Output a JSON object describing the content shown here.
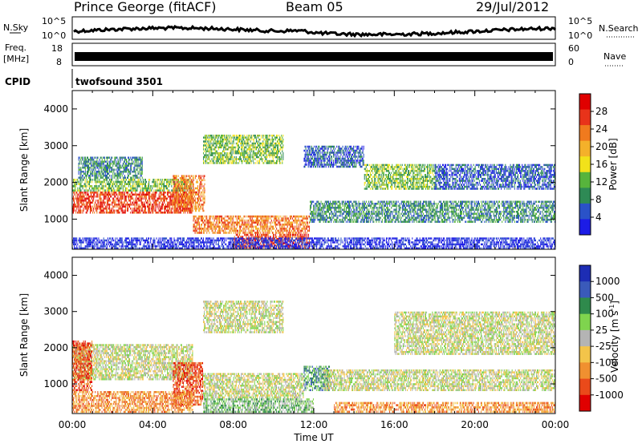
{
  "header": {
    "station": "Prince George (fitACF)",
    "beam": "Beam 05",
    "date": "29/Jul/2012"
  },
  "strips": {
    "nsky_label": "N.Sky",
    "nsky_ticks": [
      "10^5",
      "10^0"
    ],
    "nsearch_label": "N.Search",
    "nsearch_ticks": [
      "10^5",
      "10^0"
    ],
    "freq_label_1": "Freq.",
    "freq_label_2": "[MHz]",
    "freq_ticks": [
      "18",
      "8"
    ],
    "nave_label": "Nave",
    "nave_ticks": [
      "60",
      "0"
    ],
    "cpid_label": "CPID",
    "cpid_value": "twofsound 3501"
  },
  "colors": {
    "power": [
      "#1c1ce6",
      "#2a52c8",
      "#2e8a55",
      "#57b43c",
      "#f2e21a",
      "#f4b12a",
      "#f07a1e",
      "#e8331a",
      "#e00000"
    ],
    "velocity": [
      "#1d2db4",
      "#3a5aba",
      "#2f8a4c",
      "#7fd44e",
      "#b4b4b4",
      "#f3c44a",
      "#f09030",
      "#ea4a1a",
      "#e00000"
    ]
  },
  "chart_data": [
    {
      "type": "heatmap",
      "xlabel": "",
      "ylabel": "Slant Range [km]",
      "ylim": [
        180,
        4500
      ],
      "yticks": [
        1000,
        2000,
        3000,
        4000
      ],
      "xlim": [
        0,
        24
      ],
      "colorbar": {
        "label": "Power [dB]",
        "ticks": [
          "4",
          "8",
          "12",
          "16",
          "20",
          "24",
          "28"
        ]
      },
      "bands": [
        {
          "t0": 0.0,
          "t1": 6.0,
          "r0": 1150,
          "r1": 1750,
          "level": 7
        },
        {
          "t0": 0.0,
          "t1": 6.0,
          "r0": 1750,
          "r1": 2100,
          "level": 3
        },
        {
          "t0": 0.3,
          "t1": 3.5,
          "r0": 2100,
          "r1": 2700,
          "level": 2
        },
        {
          "t0": 5.0,
          "t1": 6.6,
          "r0": 1200,
          "r1": 2200,
          "level": 6
        },
        {
          "t0": 6.5,
          "t1": 10.5,
          "r0": 2500,
          "r1": 3300,
          "level": 3
        },
        {
          "t0": 6.0,
          "t1": 11.8,
          "r0": 600,
          "r1": 1100,
          "level": 6
        },
        {
          "t0": 8.0,
          "t1": 11.8,
          "r0": 200,
          "r1": 600,
          "level": 7
        },
        {
          "t0": 11.8,
          "t1": 24.0,
          "r0": 900,
          "r1": 1500,
          "level": 2
        },
        {
          "t0": 11.5,
          "t1": 14.5,
          "r0": 2400,
          "r1": 3000,
          "level": 1
        },
        {
          "t0": 14.5,
          "t1": 18.0,
          "r0": 1800,
          "r1": 2500,
          "level": 3
        },
        {
          "t0": 18.0,
          "t1": 24.0,
          "r0": 1800,
          "r1": 2500,
          "level": 1
        },
        {
          "t0": 0.0,
          "t1": 24.0,
          "r0": 180,
          "r1": 500,
          "level": 0
        }
      ]
    },
    {
      "type": "heatmap",
      "xlabel": "Time UT",
      "ylabel": "Slant Range [km]",
      "ylim": [
        180,
        4500
      ],
      "yticks": [
        1000,
        2000,
        3000,
        4000
      ],
      "xlim": [
        0,
        24
      ],
      "xticks": [
        "00:00",
        "04:00",
        "08:00",
        "12:00",
        "16:00",
        "20:00",
        "00:00"
      ],
      "colorbar": {
        "label": "Velocity [m s^-1]",
        "ticks": [
          "1000",
          "500",
          "100",
          "25",
          "-25",
          "-100",
          "-500",
          "-1000"
        ]
      },
      "bands": [
        {
          "t0": 0.0,
          "t1": 6.0,
          "r0": 1100,
          "r1": 2100,
          "level": 4
        },
        {
          "t0": 0.0,
          "t1": 1.0,
          "r0": 800,
          "r1": 2200,
          "level": 7
        },
        {
          "t0": 5.0,
          "t1": 6.5,
          "r0": 400,
          "r1": 1600,
          "level": 7
        },
        {
          "t0": 6.5,
          "t1": 10.5,
          "r0": 2400,
          "r1": 3300,
          "level": 4
        },
        {
          "t0": 6.5,
          "t1": 11.5,
          "r0": 600,
          "r1": 1300,
          "level": 4
        },
        {
          "t0": 6.5,
          "t1": 12.0,
          "r0": 200,
          "r1": 600,
          "level": 3
        },
        {
          "t0": 11.5,
          "t1": 12.8,
          "r0": 800,
          "r1": 1500,
          "level": 2
        },
        {
          "t0": 12.5,
          "t1": 24.0,
          "r0": 800,
          "r1": 1400,
          "level": 4
        },
        {
          "t0": 16.0,
          "t1": 24.0,
          "r0": 1800,
          "r1": 3000,
          "level": 4
        },
        {
          "t0": 0.0,
          "t1": 6.0,
          "r0": 200,
          "r1": 800,
          "level": 6
        },
        {
          "t0": 13.0,
          "t1": 24.0,
          "r0": 200,
          "r1": 500,
          "level": 6
        }
      ]
    }
  ]
}
